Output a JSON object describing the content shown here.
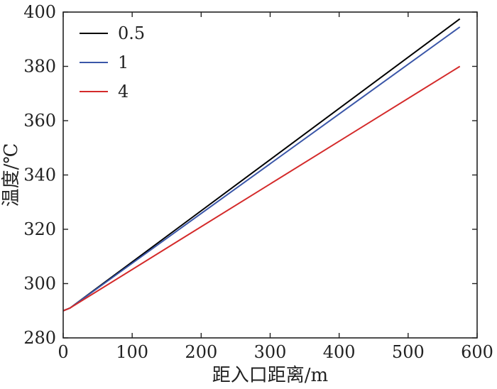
{
  "chart_data": {
    "type": "line",
    "xlabel": "距入口距离/m",
    "ylabel": "温度/℃",
    "xlim": [
      0,
      600
    ],
    "ylim": [
      280,
      400
    ],
    "xticks": [
      0,
      100,
      200,
      300,
      400,
      500,
      600
    ],
    "yticks": [
      280,
      300,
      320,
      340,
      360,
      380,
      400
    ],
    "grid": false,
    "legend_position": "top-left",
    "series": [
      {
        "name": "0.5",
        "color": "#000000",
        "x": [
          0,
          10,
          575
        ],
        "y": [
          290,
          291,
          397.5
        ]
      },
      {
        "name": "1",
        "color": "#3a56a8",
        "x": [
          0,
          10,
          575
        ],
        "y": [
          290,
          291,
          394.5
        ]
      },
      {
        "name": "4",
        "color": "#d42a2a",
        "x": [
          0,
          10,
          575
        ],
        "y": [
          290,
          291,
          380
        ]
      }
    ]
  }
}
